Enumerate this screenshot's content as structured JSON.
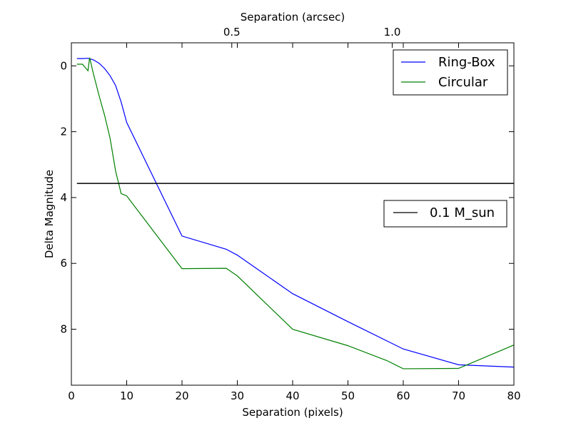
{
  "chart_data": {
    "type": "line",
    "xlabel": "Separation (pixels)",
    "ylabel": "Delta Magnitude",
    "top_xlabel": "Separation (arcsec)",
    "xlim": [
      0,
      80
    ],
    "ylim": [
      9.7,
      -0.7
    ],
    "y_inverted": true,
    "x_ticks": [
      0,
      10,
      20,
      30,
      40,
      50,
      60,
      70,
      80
    ],
    "x_tick_labels": [
      "0",
      "10",
      "20",
      "30",
      "40",
      "50",
      "60",
      "70",
      "80"
    ],
    "y_ticks": [
      0,
      2,
      4,
      6,
      8
    ],
    "y_tick_labels": [
      "0",
      "2",
      "4",
      "6",
      "8"
    ],
    "top_ticks": [
      {
        "x": 29.0,
        "label": "0.5"
      },
      {
        "x": 58.0,
        "label": "1.0"
      }
    ],
    "series": [
      {
        "name": "Ring-Box",
        "color": "#0000ff",
        "points": [
          [
            1,
            -0.22
          ],
          [
            2,
            -0.22
          ],
          [
            3,
            -0.23
          ],
          [
            4,
            -0.18
          ],
          [
            5,
            -0.08
          ],
          [
            6,
            0.08
          ],
          [
            7,
            0.3
          ],
          [
            8,
            0.6
          ],
          [
            9,
            1.1
          ],
          [
            10,
            1.72
          ],
          [
            20,
            5.17
          ],
          [
            28,
            5.57
          ],
          [
            30,
            5.75
          ],
          [
            40,
            6.92
          ],
          [
            50,
            7.77
          ],
          [
            60,
            8.6
          ],
          [
            70,
            9.08
          ],
          [
            80,
            9.15
          ]
        ]
      },
      {
        "name": "Circular",
        "color": "#008000",
        "points": [
          [
            1,
            -0.05
          ],
          [
            2,
            -0.05
          ],
          [
            3,
            0.15
          ],
          [
            3.3,
            -0.25
          ],
          [
            4,
            0.25
          ],
          [
            5,
            0.9
          ],
          [
            6,
            1.5
          ],
          [
            7,
            2.2
          ],
          [
            8,
            3.2
          ],
          [
            9,
            3.88
          ],
          [
            10,
            3.95
          ],
          [
            20,
            6.16
          ],
          [
            28,
            6.15
          ],
          [
            30,
            6.38
          ],
          [
            40,
            8.0
          ],
          [
            50,
            8.5
          ],
          [
            57,
            8.95
          ],
          [
            60,
            9.2
          ],
          [
            70,
            9.19
          ],
          [
            80,
            8.48
          ]
        ]
      },
      {
        "name": "0.1 M_sun",
        "color": "#000000",
        "points": [
          [
            1,
            3.57
          ],
          [
            80,
            3.57
          ]
        ]
      }
    ],
    "legends": [
      {
        "position": "top-right",
        "entries": [
          "Ring-Box",
          "Circular"
        ]
      },
      {
        "position": "center-right",
        "entries": [
          "0.1 M_sun"
        ]
      }
    ]
  }
}
